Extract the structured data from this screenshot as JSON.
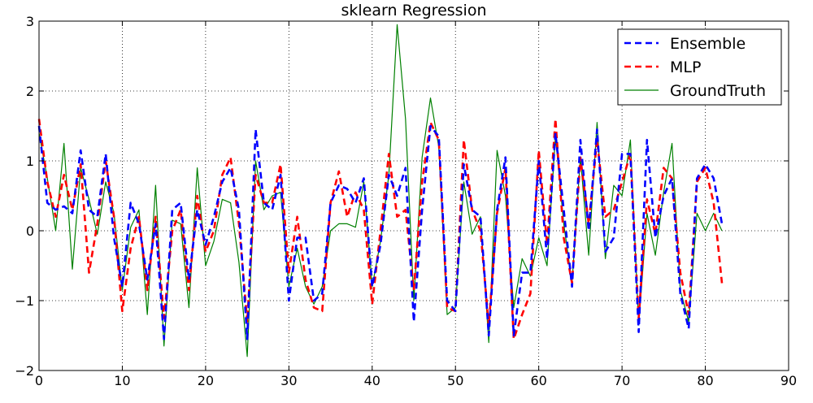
{
  "chart_data": {
    "type": "line",
    "title": "sklearn Regression",
    "xlabel": "",
    "ylabel": "",
    "xlim": [
      0,
      90
    ],
    "ylim": [
      -2,
      3
    ],
    "xticks": [
      0,
      10,
      20,
      30,
      40,
      50,
      60,
      70,
      80,
      90
    ],
    "yticks": [
      -2,
      -1,
      0,
      1,
      2,
      3
    ],
    "xtick_labels": [
      "0",
      "10",
      "20",
      "30",
      "40",
      "50",
      "60",
      "70",
      "80",
      "90"
    ],
    "ytick_labels": [
      "−2",
      "−1",
      "0",
      "1",
      "2",
      "3"
    ],
    "grid": true,
    "legend_position": "top-right",
    "x": [
      0,
      1,
      2,
      3,
      4,
      5,
      6,
      7,
      8,
      9,
      10,
      11,
      12,
      13,
      14,
      15,
      16,
      17,
      18,
      19,
      20,
      21,
      22,
      23,
      24,
      25,
      26,
      27,
      28,
      29,
      30,
      31,
      32,
      33,
      34,
      35,
      36,
      37,
      38,
      39,
      40,
      41,
      42,
      43,
      44,
      45,
      46,
      47,
      48,
      49,
      50,
      51,
      52,
      53,
      54,
      55,
      56,
      57,
      58,
      59,
      60,
      61,
      62,
      63,
      64,
      65,
      66,
      67,
      68,
      69,
      70,
      71,
      72,
      73,
      74,
      75,
      76,
      77,
      78,
      79,
      80,
      81,
      82
    ],
    "series": [
      {
        "name": "Ensemble",
        "color": "#0000ff",
        "style": "dashed",
        "values": [
          1.5,
          0.4,
          0.3,
          0.35,
          0.25,
          1.15,
          0.3,
          0.2,
          1.1,
          -0.1,
          -0.8,
          0.4,
          0.1,
          -0.7,
          0.1,
          -1.55,
          0.3,
          0.4,
          -0.7,
          0.3,
          -0.2,
          0.2,
          0.7,
          0.9,
          0.3,
          -1.55,
          1.45,
          0.4,
          0.3,
          0.8,
          -1.0,
          -0.1,
          -0.1,
          -1.0,
          -0.9,
          0.4,
          0.65,
          0.6,
          0.4,
          0.75,
          -0.8,
          -0.2,
          0.8,
          0.5,
          0.9,
          -1.3,
          0.3,
          1.5,
          1.35,
          -1.0,
          -1.15,
          0.95,
          0.3,
          0.2,
          -1.5,
          0.3,
          1.05,
          -1.5,
          -0.6,
          -0.6,
          1.0,
          -0.4,
          1.4,
          0.3,
          -0.8,
          1.3,
          0.0,
          1.45,
          -0.3,
          -0.1,
          1.1,
          1.1,
          -1.45,
          1.3,
          -0.1,
          0.5,
          0.75,
          -0.9,
          -1.4,
          0.75,
          0.95,
          0.75,
          0.1
        ]
      },
      {
        "name": "MLP",
        "color": "#ff0000",
        "style": "dashed",
        "values": [
          1.6,
          0.7,
          0.2,
          0.8,
          0.3,
          0.95,
          -0.6,
          0.1,
          1.0,
          0.2,
          -1.15,
          -0.25,
          0.2,
          -0.85,
          0.2,
          -1.25,
          0.0,
          0.3,
          -0.85,
          0.5,
          -0.3,
          0.0,
          0.8,
          1.05,
          0.1,
          -1.3,
          0.8,
          0.4,
          0.4,
          0.95,
          -0.6,
          0.2,
          -0.7,
          -1.1,
          -1.15,
          0.4,
          0.85,
          0.2,
          0.55,
          0.3,
          -1.05,
          0.0,
          1.1,
          0.2,
          0.3,
          -0.85,
          0.7,
          1.55,
          1.3,
          -1.1,
          -1.15,
          1.3,
          0.3,
          0.0,
          -1.35,
          0.25,
          0.9,
          -1.55,
          -1.2,
          -0.9,
          1.15,
          -0.2,
          1.6,
          -0.1,
          -0.75,
          1.05,
          0.1,
          1.3,
          0.2,
          0.3,
          0.7,
          1.1,
          -1.25,
          0.45,
          -0.05,
          0.9,
          0.75,
          -0.6,
          -1.2,
          0.7,
          0.9,
          0.4,
          -0.75
        ]
      },
      {
        "name": "GroundTruth",
        "color": "#008000",
        "style": "solid",
        "values": [
          1.4,
          0.75,
          0.0,
          1.25,
          -0.55,
          0.9,
          0.45,
          -0.05,
          0.7,
          0.25,
          -0.85,
          0.05,
          0.3,
          -1.2,
          0.65,
          -1.65,
          0.15,
          0.1,
          -1.1,
          0.9,
          -0.5,
          -0.15,
          0.45,
          0.4,
          -0.45,
          -1.8,
          1.0,
          0.3,
          0.5,
          0.55,
          -0.8,
          -0.25,
          -0.8,
          -1.05,
          -0.8,
          0.0,
          0.1,
          0.1,
          0.05,
          0.7,
          -0.8,
          -0.15,
          0.8,
          2.95,
          1.6,
          -1.0,
          1.05,
          1.9,
          1.2,
          -1.2,
          -1.1,
          0.7,
          -0.05,
          0.2,
          -1.6,
          1.15,
          0.5,
          -1.1,
          -0.4,
          -0.65,
          -0.1,
          -0.5,
          1.35,
          0.1,
          -0.75,
          1.05,
          -0.35,
          1.55,
          -0.4,
          0.65,
          0.5,
          1.3,
          -1.35,
          0.25,
          -0.35,
          0.55,
          1.25,
          -0.85,
          -1.3,
          0.25,
          0.0,
          0.25,
          0.0
        ]
      }
    ]
  }
}
